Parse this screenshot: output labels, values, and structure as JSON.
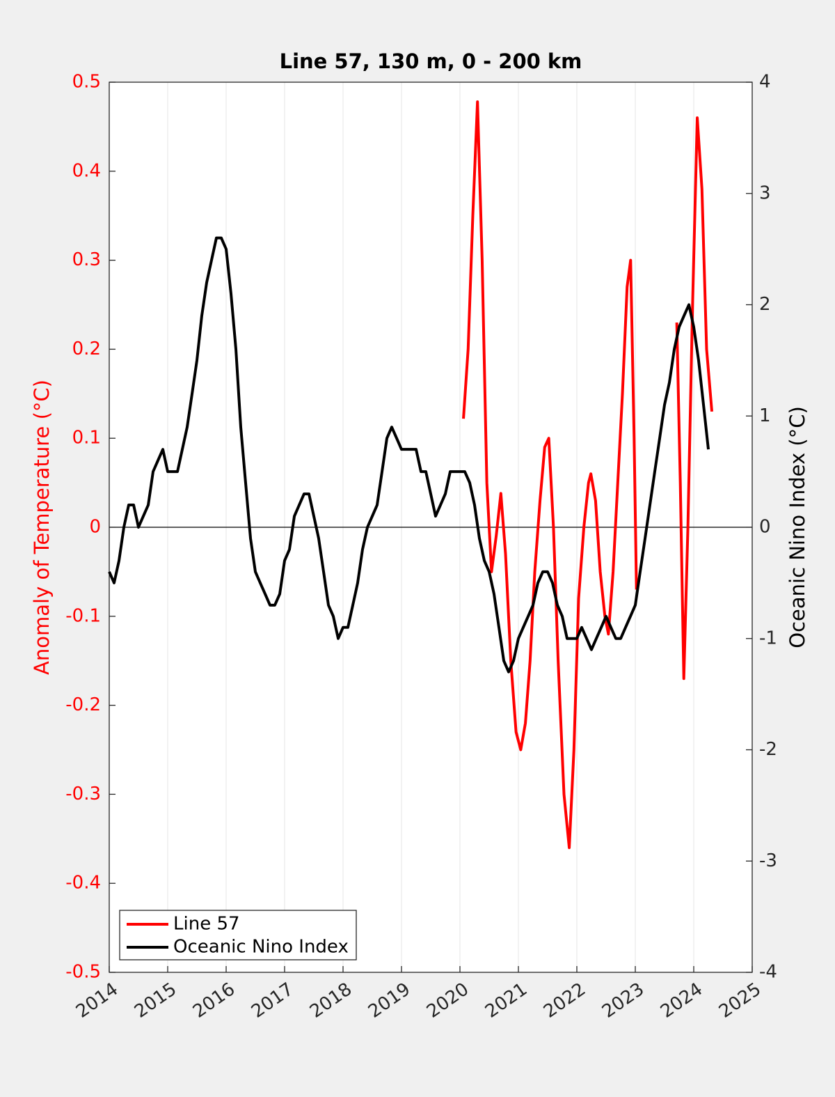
{
  "chart_data": {
    "type": "line",
    "title": "Line 57, 130 m, 0 - 200 km",
    "ylabel": "Anomaly of Temperature (°C)",
    "y2label": "Oceanic Nino Index (°C)",
    "xlim": [
      2014,
      2025
    ],
    "xticks": [
      2014,
      2015,
      2016,
      2017,
      2018,
      2019,
      2020,
      2021,
      2022,
      2023,
      2024,
      2025
    ],
    "ylim": [
      -0.5,
      0.5
    ],
    "yticks": [
      -0.5,
      -0.4,
      -0.3,
      -0.2,
      -0.1,
      0,
      0.1,
      0.2,
      0.3,
      0.4,
      0.5
    ],
    "y2lim": [
      -4,
      4
    ],
    "y2ticks": [
      -4,
      -3,
      -2,
      -1,
      0,
      1,
      2,
      3,
      4
    ],
    "grid": "x",
    "zero_line": true,
    "legend": "lower left",
    "series": [
      {
        "name": "Line 57",
        "color": "#ff0000",
        "x": [
          2020.06,
          2020.14,
          2020.22,
          2020.3,
          2020.38,
          2020.46,
          2020.54,
          2020.62,
          2020.7,
          2020.78,
          2020.87,
          2020.96,
          2021.04,
          2021.12,
          2021.2,
          2021.28,
          2021.37,
          2021.45,
          2021.52,
          2021.6,
          2021.68,
          2021.78,
          2021.87,
          2021.95,
          2022.03,
          2022.12,
          2022.2,
          2022.24,
          2022.32,
          2022.4,
          2022.48,
          2022.54,
          2022.62,
          2022.7,
          2022.78,
          2022.86,
          2022.92,
          2022.98,
          2023.02,
          2023.4,
          2023.71,
          2023.77,
          2023.83,
          2023.9,
          2023.98,
          2024.06,
          2024.14,
          2024.22,
          2024.31
        ],
        "values": [
          0.122,
          0.2,
          0.35,
          0.478,
          0.3,
          0.05,
          -0.05,
          -0.01,
          0.038,
          -0.03,
          -0.15,
          -0.23,
          -0.25,
          -0.22,
          -0.15,
          -0.05,
          0.03,
          0.09,
          0.1,
          0.0,
          -0.15,
          -0.3,
          -0.36,
          -0.25,
          -0.08,
          0.0,
          0.05,
          0.06,
          0.03,
          -0.05,
          -0.1,
          -0.12,
          -0.05,
          0.05,
          0.15,
          0.27,
          0.3,
          0.1,
          -0.07,
          null,
          0.23,
          0.05,
          -0.17,
          0.0,
          0.25,
          0.46,
          0.38,
          0.2,
          0.13
        ]
      },
      {
        "name": "Oceanic Nino Index",
        "color": "#000000",
        "axis": "y2",
        "x": [
          2014,
          2014.083,
          2014.167,
          2014.25,
          2014.333,
          2014.417,
          2014.5,
          2014.583,
          2014.667,
          2014.75,
          2014.833,
          2014.917,
          2015,
          2015.083,
          2015.167,
          2015.25,
          2015.333,
          2015.417,
          2015.5,
          2015.583,
          2015.667,
          2015.75,
          2015.833,
          2015.917,
          2016,
          2016.083,
          2016.167,
          2016.25,
          2016.333,
          2016.417,
          2016.5,
          2016.583,
          2016.667,
          2016.75,
          2016.833,
          2016.917,
          2017,
          2017.083,
          2017.167,
          2017.25,
          2017.333,
          2017.417,
          2017.5,
          2017.583,
          2017.667,
          2017.75,
          2017.833,
          2017.917,
          2018,
          2018.083,
          2018.167,
          2018.25,
          2018.333,
          2018.417,
          2018.5,
          2018.583,
          2018.667,
          2018.75,
          2018.833,
          2018.917,
          2019,
          2019.083,
          2019.167,
          2019.25,
          2019.333,
          2019.417,
          2019.5,
          2019.583,
          2019.667,
          2019.75,
          2019.833,
          2019.917,
          2020,
          2020.083,
          2020.167,
          2020.25,
          2020.333,
          2020.417,
          2020.5,
          2020.583,
          2020.667,
          2020.75,
          2020.833,
          2020.917,
          2021,
          2021.083,
          2021.167,
          2021.25,
          2021.333,
          2021.417,
          2021.5,
          2021.583,
          2021.667,
          2021.75,
          2021.833,
          2021.917,
          2022,
          2022.083,
          2022.167,
          2022.25,
          2022.333,
          2022.417,
          2022.5,
          2022.583,
          2022.667,
          2022.75,
          2022.833,
          2022.917,
          2023,
          2023.083,
          2023.167,
          2023.25,
          2023.333,
          2023.417,
          2023.5,
          2023.583,
          2023.667,
          2023.75,
          2023.833,
          2023.917,
          2024,
          2024.083,
          2024.167,
          2024.25
        ],
        "values": [
          -0.4,
          -0.5,
          -0.3,
          0.0,
          0.2,
          0.2,
          0.0,
          0.1,
          0.2,
          0.5,
          0.6,
          0.7,
          0.5,
          0.5,
          0.5,
          0.7,
          0.9,
          1.2,
          1.5,
          1.9,
          2.2,
          2.4,
          2.6,
          2.6,
          2.5,
          2.1,
          1.6,
          0.9,
          0.4,
          -0.1,
          -0.4,
          -0.5,
          -0.6,
          -0.7,
          -0.7,
          -0.6,
          -0.3,
          -0.2,
          0.1,
          0.2,
          0.3,
          0.3,
          0.1,
          -0.1,
          -0.4,
          -0.7,
          -0.8,
          -1.0,
          -0.9,
          -0.9,
          -0.7,
          -0.5,
          -0.2,
          0.0,
          0.1,
          0.2,
          0.5,
          0.8,
          0.9,
          0.8,
          0.7,
          0.7,
          0.7,
          0.7,
          0.5,
          0.5,
          0.3,
          0.1,
          0.2,
          0.3,
          0.5,
          0.5,
          0.5,
          0.5,
          0.4,
          0.2,
          -0.1,
          -0.3,
          -0.4,
          -0.6,
          -0.9,
          -1.2,
          -1.3,
          -1.2,
          -1.0,
          -0.9,
          -0.8,
          -0.7,
          -0.5,
          -0.4,
          -0.4,
          -0.5,
          -0.7,
          -0.8,
          -1.0,
          -1.0,
          -1.0,
          -0.9,
          -1.0,
          -1.1,
          -1.0,
          -0.9,
          -0.8,
          -0.9,
          -1.0,
          -1.0,
          -0.9,
          -0.8,
          -0.7,
          -0.4,
          -0.1,
          0.2,
          0.5,
          0.8,
          1.1,
          1.3,
          1.6,
          1.8,
          1.9,
          2.0,
          1.8,
          1.5,
          1.1,
          0.7
        ]
      }
    ]
  }
}
